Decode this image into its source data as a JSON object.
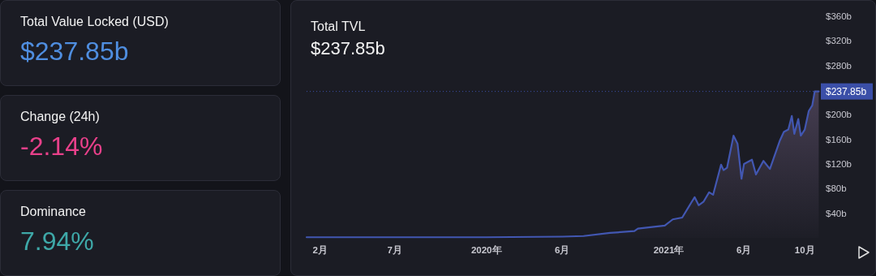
{
  "chart_data": [
    {
      "type": "other",
      "annotations": [
        "Total Value Locked (USD)",
        "$237.85b",
        "Change (24h)",
        "-2.14%",
        "Dominance",
        "7.94%"
      ],
      "colors": [
        "#f2f2f2",
        "#4f8ee0",
        "#f2f2f2",
        "#e8408a",
        "#f2f2f2",
        "#3ea8a8"
      ]
    },
    {
      "type": "area",
      "title": "Total TVL",
      "subtitle": "$237.85b",
      "xlim": [
        "2019-01-05",
        "2021-10-30"
      ],
      "xticks": [
        {
          "value": "2019-02",
          "label": "2月"
        },
        {
          "value": "2019-07",
          "label": "7月"
        },
        {
          "value": "2020-01",
          "label": "2020年"
        },
        {
          "value": "2020-06",
          "label": "6月"
        },
        {
          "value": "2021-01",
          "label": "2021年"
        },
        {
          "value": "2021-06",
          "label": "6月"
        },
        {
          "value": "2021-10",
          "label": "10月"
        }
      ],
      "ylim": [
        0,
        360
      ],
      "yticks": [
        {
          "value": 40,
          "label": "$40b"
        },
        {
          "value": 80,
          "label": "$80b"
        },
        {
          "value": 120,
          "label": "$120b"
        },
        {
          "value": 160,
          "label": "$160b"
        },
        {
          "value": 200,
          "label": "$200b"
        },
        {
          "value": 280,
          "label": "$280b"
        },
        {
          "value": 320,
          "label": "$320b"
        },
        {
          "value": 360,
          "label": "$360b"
        }
      ],
      "ref_lines": [
        {
          "axis": "y",
          "value": 237.85,
          "label": "$237.85b",
          "color": "#3b4fa8",
          "line_style": "dotted"
        }
      ],
      "series": [
        {
          "color": "#4257b2",
          "x": [
            "2019-01-05",
            "2019-07-01",
            "2020-01-01",
            "2020-06-01",
            "2020-07-14",
            "2020-09-05",
            "2020-10-24",
            "2020-10-31",
            "2020-12-24",
            "2021-01-09",
            "2021-01-28",
            "2021-02-15",
            "2021-02-22",
            "2021-03-02",
            "2021-03-12",
            "2021-03-23",
            "2021-03-31",
            "2021-04-16",
            "2021-04-21",
            "2021-04-28",
            "2021-05-11",
            "2021-05-19",
            "2021-05-27",
            "2021-06-01",
            "2021-06-17",
            "2021-06-25",
            "2021-07-10",
            "2021-07-23",
            "2021-08-12",
            "2021-08-20",
            "2021-08-29",
            "2021-09-05",
            "2021-09-10",
            "2021-09-18",
            "2021-09-23",
            "2021-10-01",
            "2021-10-09",
            "2021-10-16",
            "2021-10-21",
            "2021-10-29"
          ],
          "values": [
            1,
            1,
            1,
            2,
            3,
            8,
            11,
            15,
            20,
            30,
            33,
            57,
            66,
            53,
            59,
            74,
            70,
            119,
            110,
            114,
            166,
            153,
            96,
            120,
            127,
            103,
            125,
            112,
            158,
            172,
            176,
            198,
            169,
            193,
            166,
            176,
            206,
            215,
            238,
            237.85
          ]
        }
      ]
    }
  ]
}
